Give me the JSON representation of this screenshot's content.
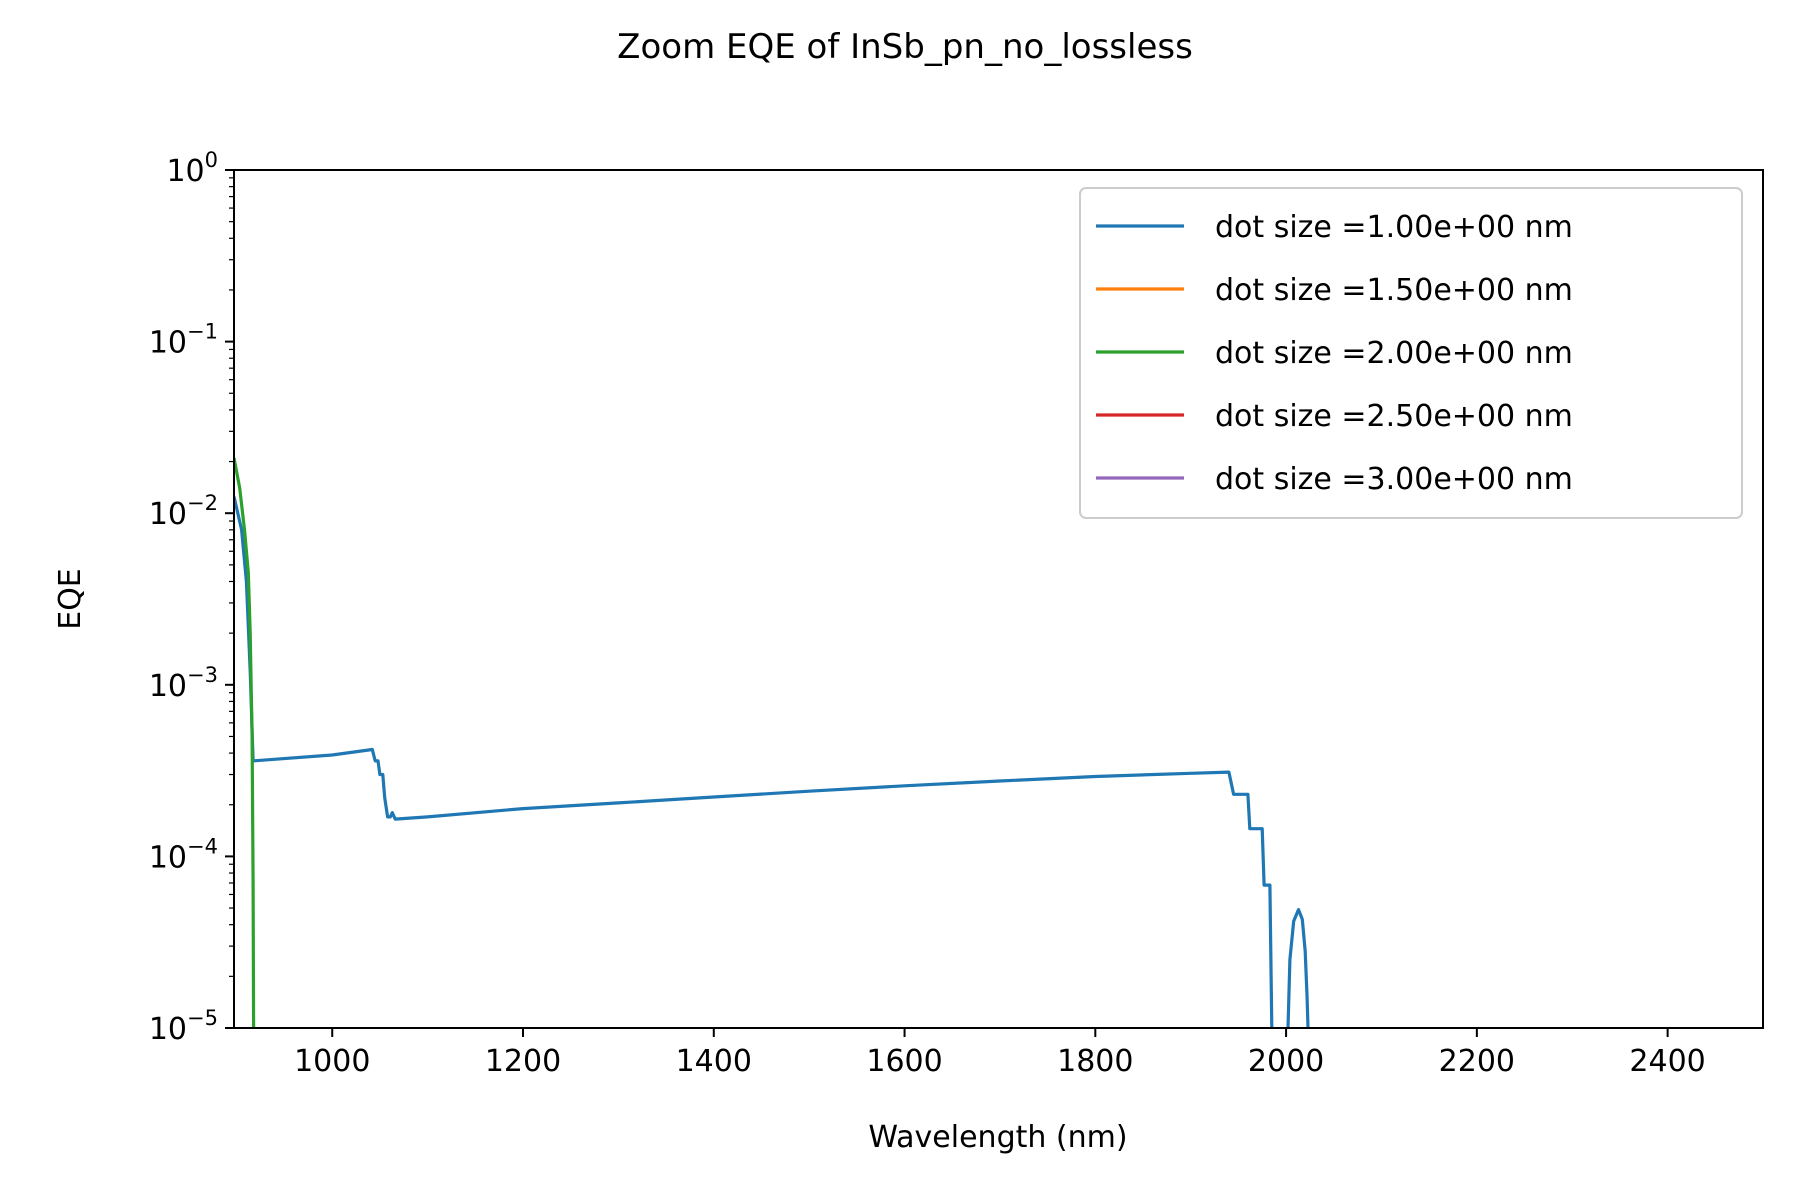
{
  "figure": {
    "title": "Zoom EQE of InSb_pn_no_lossless"
  },
  "chart_data": {
    "type": "line",
    "title": "Zoom EQE of InSb_pn_no_lossless",
    "xlabel": "Wavelength (nm)",
    "ylabel": "EQE",
    "xlim": [
      897,
      2500
    ],
    "ylim": [
      1e-05,
      1
    ],
    "yscale": "log",
    "xticks": [
      1000,
      1200,
      1400,
      1600,
      1800,
      2000,
      2200,
      2400
    ],
    "xtick_labels": [
      "1000",
      "1200",
      "1400",
      "1600",
      "1800",
      "2000",
      "2200",
      "2400"
    ],
    "yticks": [
      {
        "value": 1,
        "base": "10",
        "exp": "0"
      },
      {
        "value": 0.1,
        "base": "10",
        "exp": "−1"
      },
      {
        "value": 0.01,
        "base": "10",
        "exp": "−2"
      },
      {
        "value": 0.001,
        "base": "10",
        "exp": "−3"
      },
      {
        "value": 0.0001,
        "base": "10",
        "exp": "−4"
      },
      {
        "value": 1e-05,
        "base": "10",
        "exp": "−5"
      }
    ],
    "grid": false,
    "legend_position": "upper right",
    "series": [
      {
        "name": "dot size =1.00e+00 nm",
        "color": "#1f77b4",
        "segments": [
          [
            [
              897,
              0.0125
            ],
            [
              905,
              0.008
            ],
            [
              910,
              0.004
            ],
            [
              914,
              0.0012
            ],
            [
              917,
              0.00036
            ],
            [
              1000,
              0.00039
            ],
            [
              1042,
              0.00042
            ],
            [
              1045,
              0.00036
            ],
            [
              1048,
              0.00036
            ],
            [
              1050,
              0.0003
            ],
            [
              1053,
              0.0003
            ],
            [
              1055,
              0.00022
            ],
            [
              1058,
              0.00017
            ],
            [
              1061,
              0.00017
            ],
            [
              1063,
              0.00018
            ],
            [
              1066,
              0.000165
            ],
            [
              1100,
              0.00017
            ],
            [
              1200,
              0.00019
            ],
            [
              1300,
              0.000205
            ],
            [
              1400,
              0.000222
            ],
            [
              1500,
              0.00024
            ],
            [
              1600,
              0.000258
            ],
            [
              1700,
              0.000275
            ],
            [
              1800,
              0.000292
            ],
            [
              1900,
              0.000305
            ],
            [
              1940,
              0.00031
            ],
            [
              1945,
              0.00023
            ],
            [
              1960,
              0.00023
            ],
            [
              1962,
              0.000145
            ],
            [
              1975,
              0.000145
            ],
            [
              1977,
              6.8e-05
            ],
            [
              1983,
              6.8e-05
            ],
            [
              1985,
              1e-05
            ]
          ],
          [
            [
              2002,
              1e-05
            ],
            [
              2004,
              2.5e-05
            ],
            [
              2008,
              4.2e-05
            ],
            [
              2013,
              4.9e-05
            ],
            [
              2017,
              4.3e-05
            ],
            [
              2020,
              2.8e-05
            ],
            [
              2022,
              1.5e-05
            ],
            [
              2023,
              1e-05
            ]
          ]
        ]
      },
      {
        "name": "dot size =1.50e+00 nm",
        "color": "#ff7f0e",
        "segments": []
      },
      {
        "name": "dot size =2.00e+00 nm",
        "color": "#2ca02c",
        "segments": [
          [
            [
              897,
              0.021
            ],
            [
              903,
              0.014
            ],
            [
              908,
              0.008
            ],
            [
              912,
              0.0045
            ],
            [
              914,
              0.002
            ],
            [
              916,
              0.0005
            ],
            [
              917,
              7e-05
            ],
            [
              917.5,
              1e-05
            ]
          ]
        ]
      },
      {
        "name": "dot size =2.50e+00 nm",
        "color": "#d62728",
        "segments": []
      },
      {
        "name": "dot size =3.00e+00 nm",
        "color": "#9467bd",
        "segments": []
      }
    ]
  }
}
